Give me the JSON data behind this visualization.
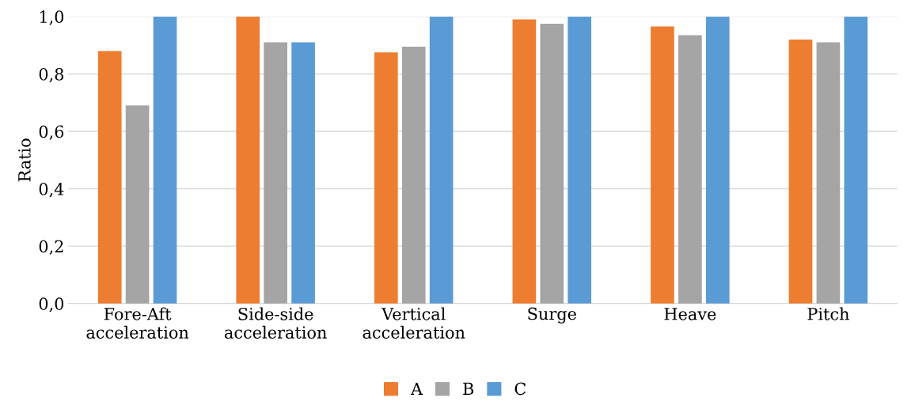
{
  "chart_data": {
    "type": "bar",
    "ylabel": "Ratio",
    "categories": [
      "Fore-Aft\nacceleration",
      "Side-side\nacceleration",
      "Vertical\nacceleration",
      "Surge",
      "Heave",
      "Pitch"
    ],
    "series": [
      {
        "name": "A",
        "color": "#ed7d31",
        "values": [
          0.88,
          1.0,
          0.875,
          0.99,
          0.965,
          0.92
        ]
      },
      {
        "name": "B",
        "color": "#a5a5a5",
        "values": [
          0.69,
          0.91,
          0.895,
          0.975,
          0.935,
          0.91
        ]
      },
      {
        "name": "C",
        "color": "#5b9bd5",
        "values": [
          1.0,
          0.91,
          1.0,
          1.0,
          1.0,
          1.0
        ]
      }
    ],
    "ylim": [
      0,
      1.0
    ],
    "yticks": [
      {
        "value": 0,
        "label": "0,0"
      },
      {
        "value": 0.2,
        "label": "0,2"
      },
      {
        "value": 0.4,
        "label": "0,4"
      },
      {
        "value": 0.6,
        "label": "0,6"
      },
      {
        "value": 0.8,
        "label": "0,8"
      },
      {
        "value": 1.0,
        "label": "1,0"
      }
    ],
    "grid": "y",
    "legend": "bottom"
  }
}
